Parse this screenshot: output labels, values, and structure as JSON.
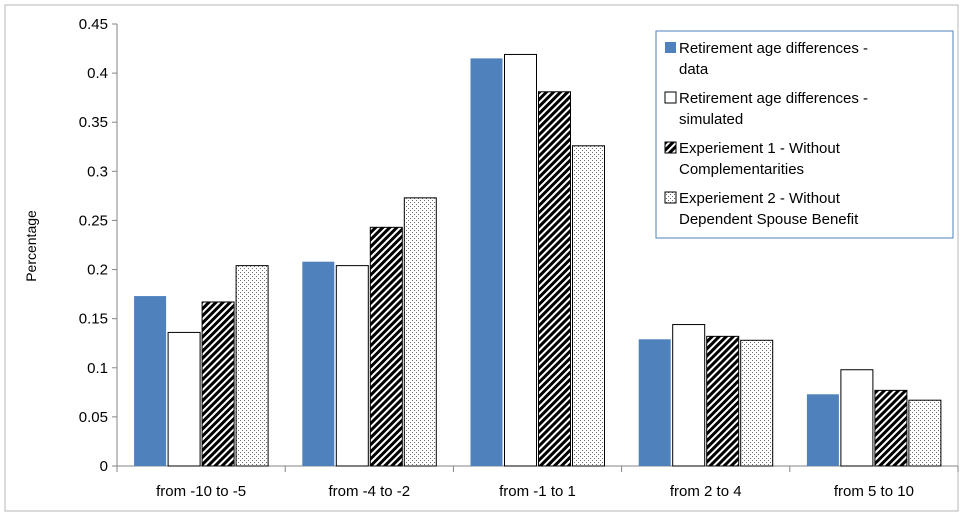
{
  "chart_data": {
    "type": "bar",
    "title": "",
    "xlabel": "",
    "ylabel": "Percentage",
    "ylim": [
      0,
      0.45
    ],
    "yticks": [
      "0",
      "0.05",
      "0.1",
      "0.15",
      "0.2",
      "0.25",
      "0.3",
      "0.35",
      "0.4",
      "0.45"
    ],
    "categories": [
      "from -10 to -5",
      "from -4 to -2",
      "from -1 to 1",
      "from 2 to 4",
      "from 5 to 10"
    ],
    "legend_position": "top-right",
    "grid": false,
    "series": [
      {
        "name": "Retirement age differences - data",
        "name_lines": [
          "Retirement age differences -",
          "data"
        ],
        "fill": "solid",
        "color": "#4f81bd",
        "values": [
          0.173,
          0.208,
          0.415,
          0.129,
          0.073
        ]
      },
      {
        "name": "Retirement age differences - simulated",
        "name_lines": [
          "Retirement age differences -",
          "simulated"
        ],
        "fill": "white",
        "color": "#ffffff",
        "values": [
          0.136,
          0.204,
          0.419,
          0.144,
          0.098
        ]
      },
      {
        "name": "Experiement 1 - Without Complementarities",
        "name_lines": [
          "Experiement 1 - Without",
          "Complementarities"
        ],
        "fill": "diagonal-stripes",
        "color": "#000000",
        "values": [
          0.167,
          0.243,
          0.381,
          0.132,
          0.077
        ]
      },
      {
        "name": "Experiement 2 - Without Dependent Spouse Benefit",
        "name_lines": [
          "Experiement 2 - Without",
          "Dependent Spouse Benefit"
        ],
        "fill": "dots",
        "color": "#000000",
        "values": [
          0.204,
          0.273,
          0.326,
          0.128,
          0.067
        ]
      }
    ]
  }
}
